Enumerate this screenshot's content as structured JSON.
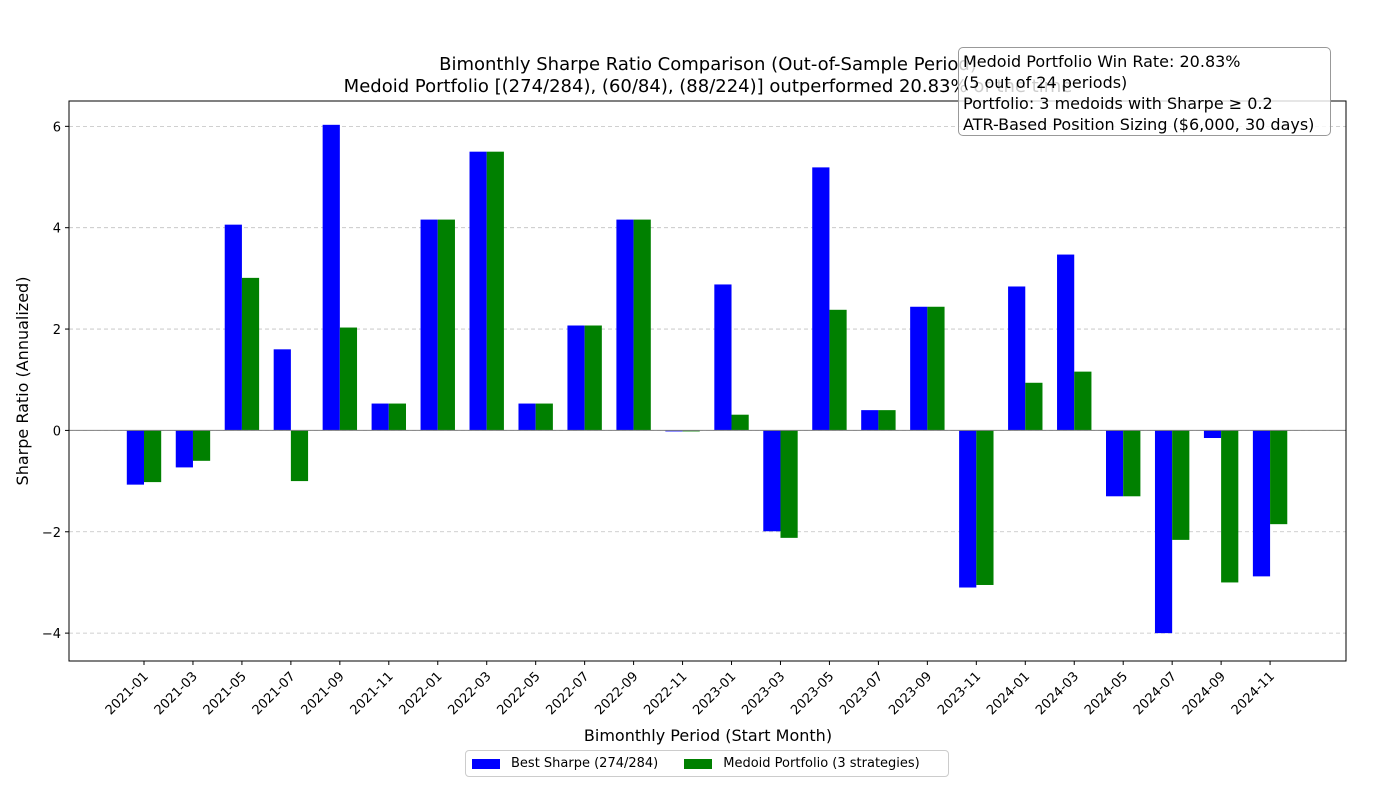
{
  "chart_data": {
    "type": "bar",
    "title": "Bimonthly Sharpe Ratio Comparison (Out-of-Sample Period)",
    "subtitle": "Medoid Portfolio [(274/284), (60/84), (88/224)] outperformed 20.83% of the time",
    "xlabel": "Bimonthly Period (Start Month)",
    "ylabel": "Sharpe Ratio (Annualized)",
    "ylim": [
      -4.55,
      6.5
    ],
    "yticks": [
      -4,
      -2,
      0,
      2,
      4,
      6
    ],
    "ytick_labels": [
      "−4",
      "−2",
      "0",
      "2",
      "4",
      "6"
    ],
    "grid": "y-dashed",
    "legend_position": "bottom-center",
    "categories": [
      "2021-01",
      "2021-03",
      "2021-05",
      "2021-07",
      "2021-09",
      "2021-11",
      "2022-01",
      "2022-03",
      "2022-05",
      "2022-07",
      "2022-09",
      "2022-11",
      "2023-01",
      "2023-03",
      "2023-05",
      "2023-07",
      "2023-09",
      "2023-11",
      "2024-01",
      "2024-03",
      "2024-05",
      "2024-07",
      "2024-09",
      "2024-11"
    ],
    "series": [
      {
        "name": "Best Sharpe (274/284)",
        "color": "#0000ff",
        "values": [
          -1.07,
          -0.73,
          4.06,
          1.6,
          6.03,
          0.53,
          4.16,
          5.5,
          0.53,
          2.07,
          4.16,
          -0.02,
          2.88,
          -1.99,
          5.19,
          0.4,
          2.44,
          -3.1,
          2.84,
          3.47,
          -1.3,
          -4.0,
          -0.15,
          -2.88
        ]
      },
      {
        "name": "Medoid Portfolio (3 strategies)",
        "color": "#008000",
        "values": [
          -1.02,
          -0.6,
          3.01,
          -1.0,
          2.03,
          0.53,
          4.16,
          5.5,
          0.53,
          2.07,
          4.16,
          -0.02,
          0.31,
          -2.12,
          2.38,
          0.4,
          2.44,
          -3.05,
          0.94,
          1.16,
          -1.3,
          -2.16,
          -3.0,
          -1.85
        ]
      }
    ]
  },
  "annotation": {
    "lines": [
      "Medoid Portfolio Win Rate: 20.83%",
      "(5 out of 24 periods)",
      "Portfolio: 3 medoids with Sharpe ≥ 0.2",
      "ATR-Based Position Sizing ($6,000, 30 days)"
    ]
  }
}
